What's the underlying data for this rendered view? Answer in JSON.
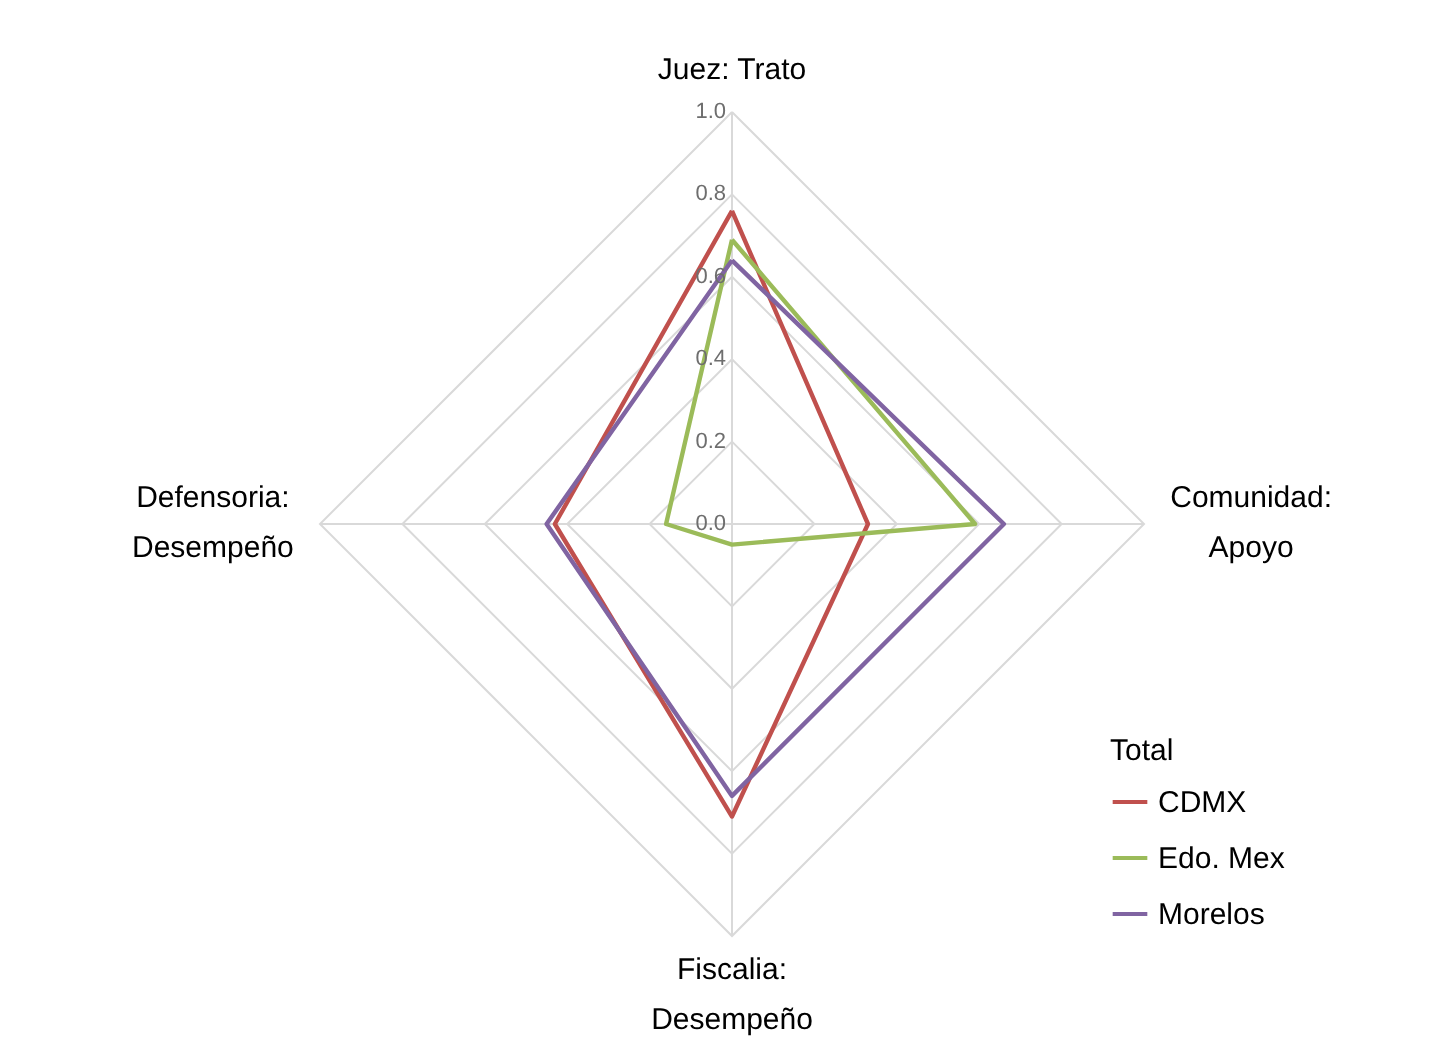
{
  "chart_data": {
    "type": "radar",
    "categories": [
      "Juez: Trato",
      "Comunidad: Apoyo",
      "Fiscalia: Desempeño",
      "Defensoria: Desempeño"
    ],
    "series": [
      {
        "name": "CDMX",
        "color": "#c0504d",
        "values": [
          0.76,
          0.33,
          0.71,
          0.43
        ]
      },
      {
        "name": "Edo. Mex",
        "color": "#9bbb59",
        "values": [
          0.69,
          0.59,
          0.05,
          0.16
        ]
      },
      {
        "name": "Morelos",
        "color": "#8064a2",
        "values": [
          0.64,
          0.66,
          0.66,
          0.45
        ]
      }
    ],
    "ylim": [
      0,
      1
    ],
    "yticks": [
      {
        "value": 0,
        "label": "0.0"
      },
      0.2,
      0.4,
      0.6,
      0.8,
      {
        "value": 1,
        "label": "1.0"
      }
    ],
    "grid": true,
    "legend": "bottom right",
    "legend_title": "Total"
  }
}
